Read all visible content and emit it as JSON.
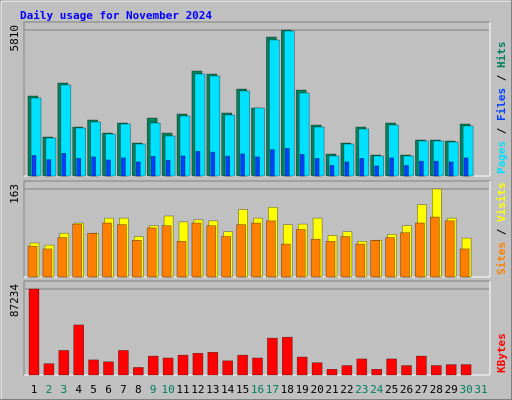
{
  "chart_data": [
    {
      "type": "bar",
      "title": "Daily usage for November 2024",
      "series": [
        {
          "name": "Hits",
          "color": "#00805c",
          "values": [
            3184,
            1552,
            3701,
            1950,
            2228,
            1711,
            2109,
            1313,
            2308,
            1711,
            2467,
            4178,
            4059,
            2507,
            3462,
            2706,
            5531,
            5810,
            3422,
            2029,
            875,
            1313,
            1950,
            836,
            2109,
            836,
            1433,
            1433,
            1393,
            2069,
            0
          ]
        },
        {
          "name": "Files",
          "color": "#0040ff",
          "values": [
            820,
            650,
            900,
            700,
            760,
            640,
            720,
            560,
            780,
            620,
            800,
            980,
            950,
            790,
            880,
            760,
            1050,
            1100,
            860,
            700,
            420,
            560,
            700,
            400,
            720,
            420,
            590,
            590,
            560,
            720,
            0
          ]
        },
        {
          "name": "Pages",
          "color": "#00e0ff",
          "values": [
            3104,
            1512,
            3621,
            1910,
            2149,
            1671,
            2069,
            1273,
            2109,
            1592,
            2388,
            4059,
            3979,
            2427,
            3382,
            2706,
            5412,
            5770,
            3303,
            1950,
            796,
            1273,
            1870,
            796,
            2029,
            796,
            1393,
            1393,
            1353,
            1990,
            0
          ]
        }
      ],
      "ylim": [
        0,
        5810
      ],
      "yticks": [
        5810
      ],
      "legend_separator": " / "
    },
    {
      "type": "bar",
      "series": [
        {
          "name": "Visits",
          "color": "#ffff00",
          "values": [
            63,
            59,
            81,
            100,
            81,
            109,
            109,
            75,
            95,
            113,
            102,
            106,
            104,
            84,
            125,
            109,
            129,
            97,
            98,
            109,
            77,
            84,
            66,
            68,
            79,
            95,
            134,
            163,
            109,
            72,
            0
          ]
        },
        {
          "name": "Sites",
          "color": "#ff8000",
          "values": [
            57,
            52,
            73,
            98,
            81,
            100,
            97,
            68,
            91,
            95,
            66,
            100,
            95,
            75,
            97,
            100,
            104,
            61,
            88,
            70,
            66,
            75,
            61,
            68,
            73,
            82,
            100,
            111,
            104,
            52,
            0
          ]
        }
      ],
      "ylim": [
        0,
        163
      ],
      "yticks": [
        163
      ],
      "legend_separator": " / "
    },
    {
      "type": "bar",
      "categories": [
        "1",
        "2",
        "3",
        "4",
        "5",
        "6",
        "7",
        "8",
        "9",
        "10",
        "11",
        "12",
        "13",
        "14",
        "15",
        "16",
        "17",
        "18",
        "19",
        "20",
        "21",
        "22",
        "23",
        "24",
        "25",
        "26",
        "27",
        "28",
        "29",
        "30",
        "31"
      ],
      "category_colors": [
        "#000000",
        "#00805c",
        "#00805c",
        "#000000",
        "#000000",
        "#000000",
        "#000000",
        "#000000",
        "#00805c",
        "#00805c",
        "#000000",
        "#000000",
        "#000000",
        "#000000",
        "#000000",
        "#00805c",
        "#00805c",
        "#000000",
        "#000000",
        "#000000",
        "#000000",
        "#000000",
        "#00805c",
        "#00805c",
        "#000000",
        "#000000",
        "#000000",
        "#000000",
        "#000000",
        "#00805c",
        "#00805c"
      ],
      "series": [
        {
          "name": "KBytes",
          "color": "#ff0000",
          "values": [
            87234,
            11503,
            24924,
            50807,
            15338,
            13421,
            24924,
            7669,
            19172,
            17255,
            20131,
            22048,
            23007,
            14379,
            20131,
            17255,
            37386,
            38345,
            18214,
            12462,
            5752,
            9586,
            16297,
            5752,
            16297,
            9586,
            19172,
            9586,
            10545,
            10545,
            0
          ]
        }
      ],
      "ylim": [
        0,
        87234
      ],
      "yticks": [
        87234
      ]
    }
  ]
}
